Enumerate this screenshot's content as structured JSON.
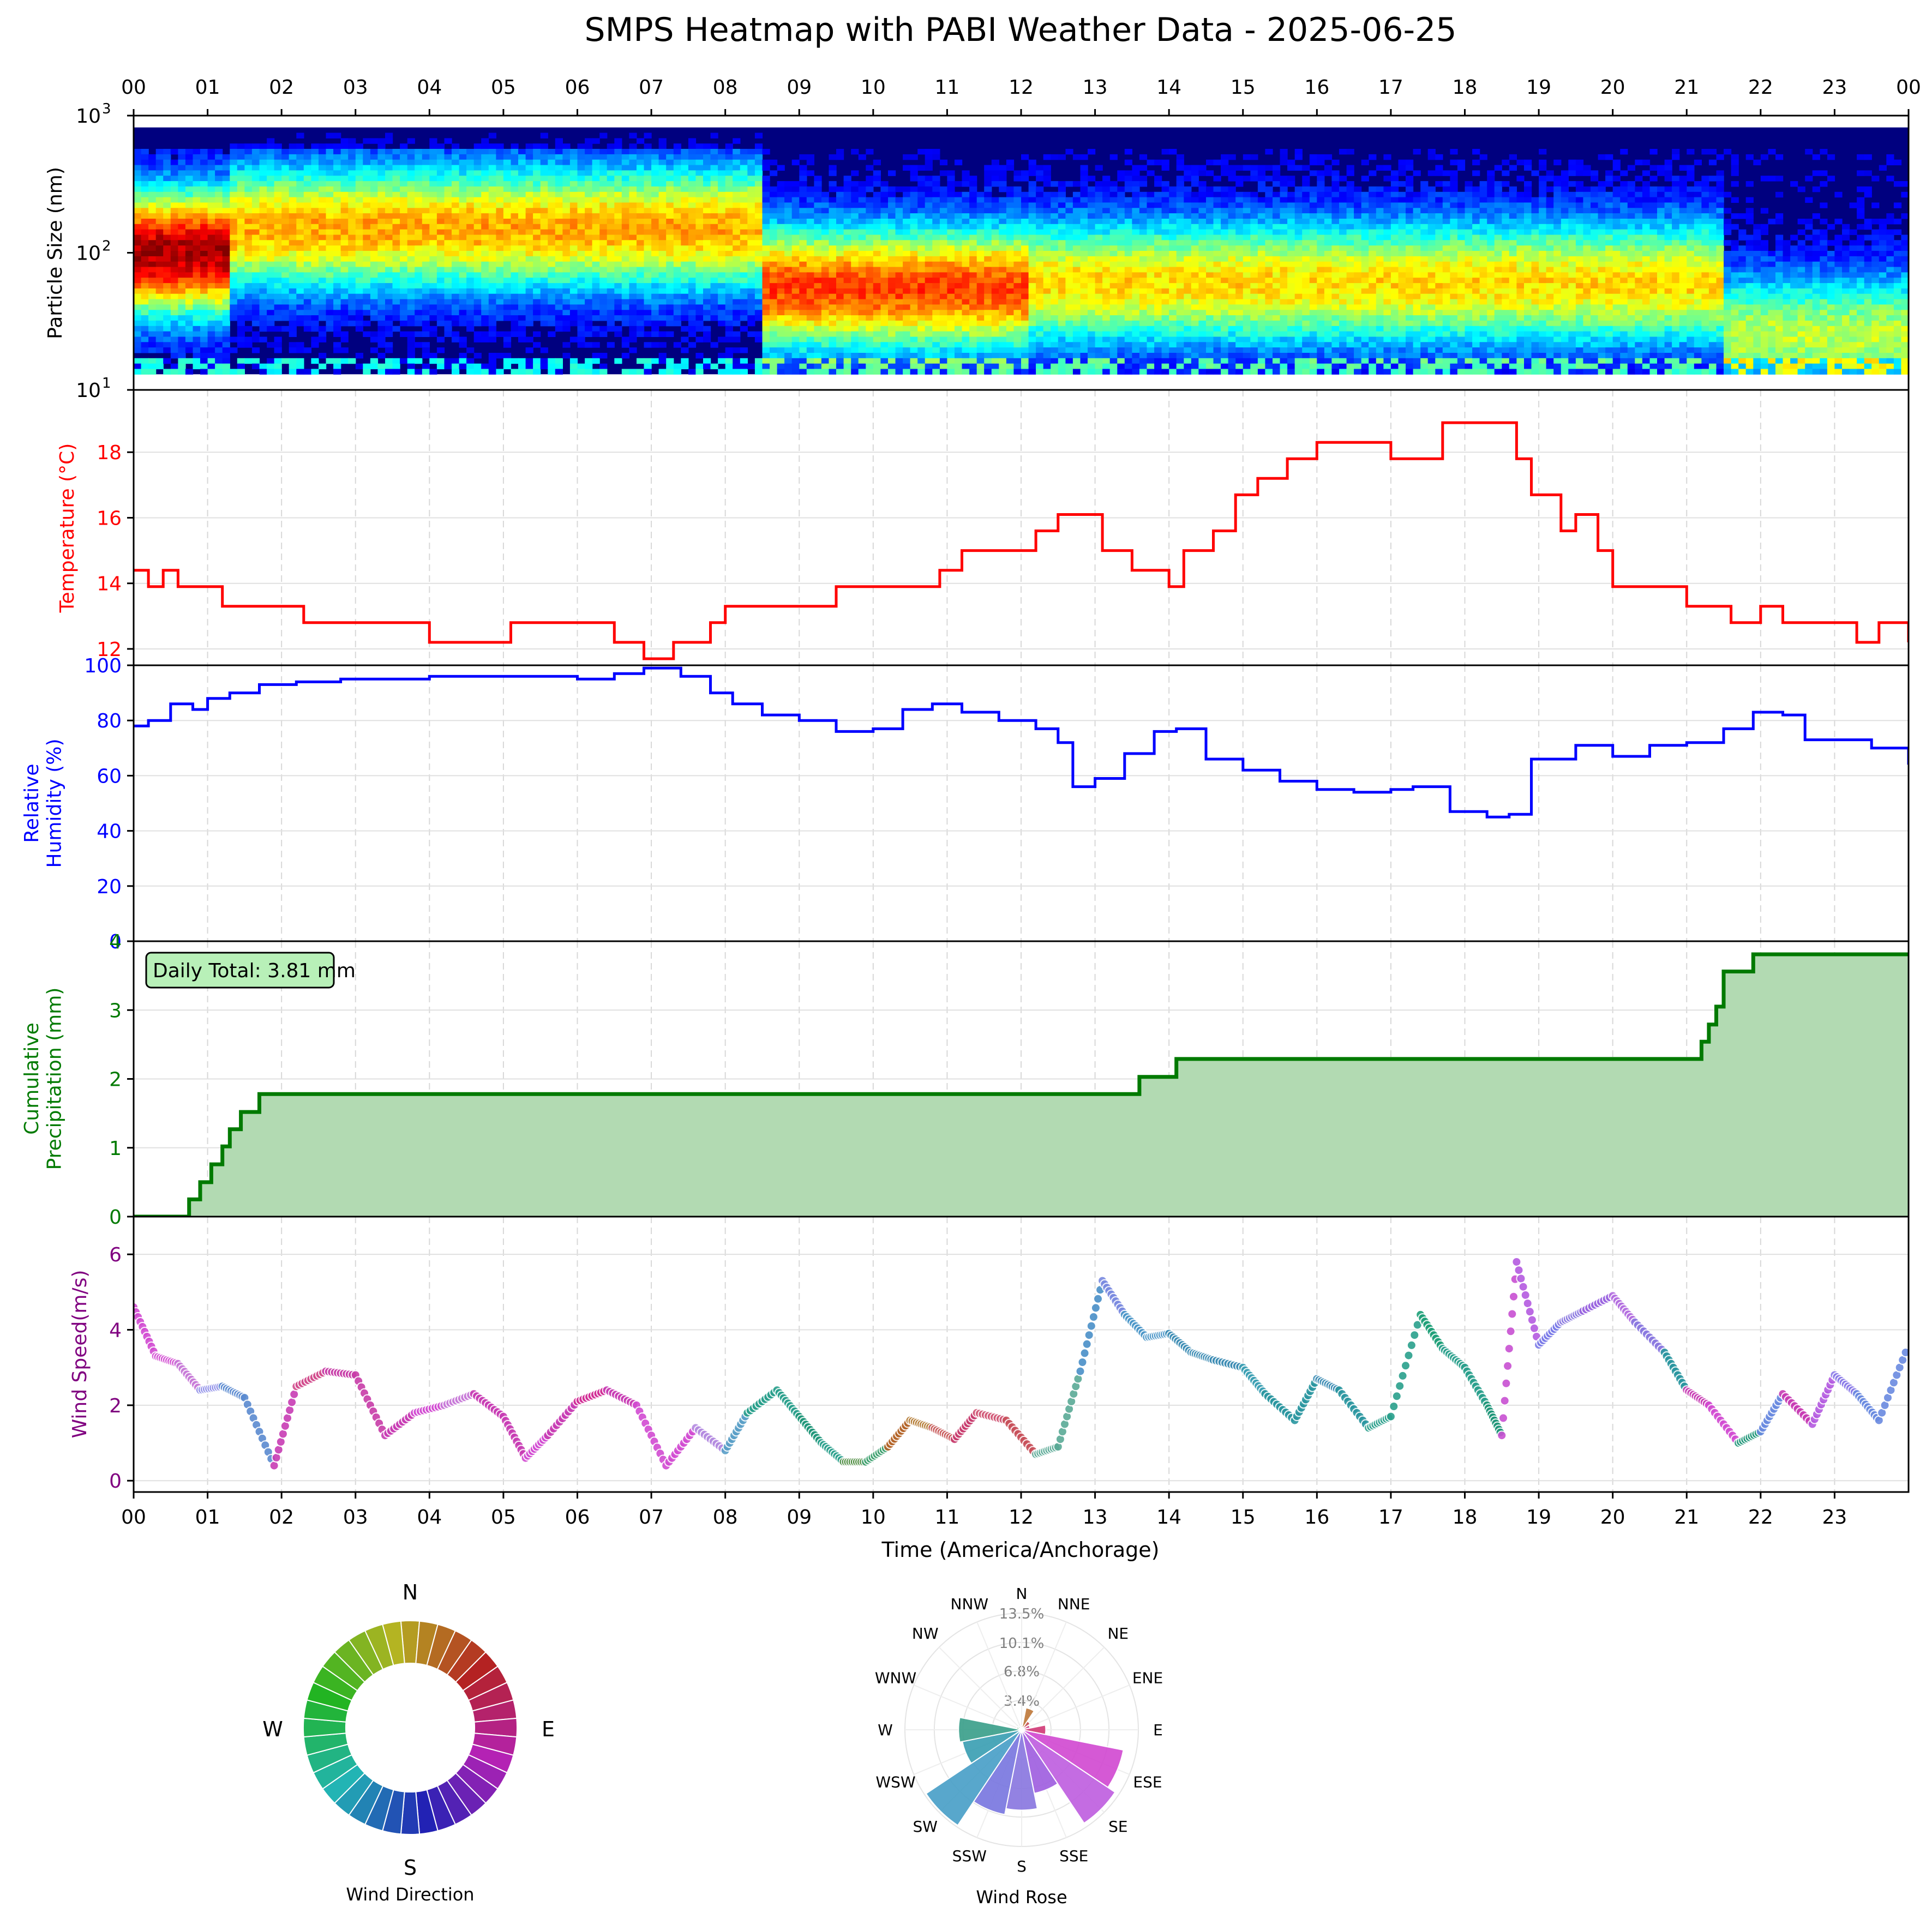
{
  "title": "SMPS Heatmap with PABI Weather Data - 2025-06-25",
  "colors": {
    "temperature": "#ff0000",
    "humidity": "#0000ff",
    "precipitation": "#007a00",
    "precip_fill": "#b2dab2",
    "precip_box": "#b8f0b8",
    "wind_label": "#800080",
    "heat_background": "#00007f",
    "grid": "#e0e0e0"
  },
  "chart_data": [
    {
      "type": "heatmap",
      "ylabel": "Particle Size (nm)",
      "yscale": "log",
      "ylim": [
        10,
        1000
      ],
      "y_ticks": [
        "10",
        "10",
        "10"
      ],
      "y_tick_exponents": [
        "1",
        "2",
        "3"
      ],
      "top_x_ticks": [
        "00",
        "01",
        "02",
        "03",
        "04",
        "05",
        "06",
        "07",
        "08",
        "09",
        "10",
        "11",
        "12",
        "13",
        "14",
        "15",
        "16",
        "17",
        "18",
        "19",
        "20",
        "21",
        "22",
        "23",
        "00"
      ],
      "colormap": "jet",
      "x_range_hours": [
        0,
        24
      ],
      "bands_hours": [
        {
          "from": 0.0,
          "to": 1.3,
          "center_nm": 100,
          "level": 0.9
        },
        {
          "from": 1.3,
          "to": 8.5,
          "center_nm": 150,
          "level": 0.65
        },
        {
          "from": 8.5,
          "to": 12.1,
          "center_nm": 55,
          "level": 0.75
        },
        {
          "from": 12.1,
          "to": 21.5,
          "center_nm": 60,
          "level": 0.6
        },
        {
          "from": 21.5,
          "to": 24.0,
          "center_nm": 25,
          "level": 0.5
        }
      ]
    },
    {
      "type": "line",
      "ylabel": "Temperature (°C)",
      "ylim": [
        11.5,
        19.9
      ],
      "y_ticks": [
        "12",
        "14",
        "16",
        "18"
      ],
      "x_hours": [
        0.0,
        0.2,
        0.4,
        0.6,
        1.2,
        2.0,
        2.3,
        4.0,
        5.1,
        6.5,
        6.9,
        7.3,
        7.8,
        8.0,
        9.5,
        10.6,
        10.9,
        11.2,
        11.5,
        12.2,
        12.5,
        13.1,
        13.5,
        14.0,
        14.2,
        14.6,
        14.9,
        15.2,
        15.6,
        16.0,
        16.3,
        17.0,
        17.7,
        17.9,
        18.5,
        18.7,
        18.9,
        19.3,
        19.5,
        19.8,
        20.0,
        20.5,
        21.0,
        21.3,
        21.6,
        22.0,
        22.3,
        22.8,
        23.3,
        23.6,
        24.0
      ],
      "values": [
        14.4,
        13.9,
        14.4,
        13.9,
        13.3,
        13.3,
        12.8,
        12.2,
        12.8,
        12.2,
        11.7,
        12.2,
        12.8,
        13.3,
        13.9,
        13.9,
        14.4,
        15.0,
        15.0,
        15.6,
        16.1,
        15.0,
        14.4,
        13.9,
        15.0,
        15.6,
        16.7,
        17.2,
        17.8,
        18.3,
        18.3,
        17.8,
        18.9,
        18.9,
        18.9,
        17.8,
        16.7,
        15.6,
        16.1,
        15.0,
        13.9,
        13.9,
        13.3,
        13.3,
        12.8,
        13.3,
        12.8,
        12.8,
        12.2,
        12.8,
        12.2
      ]
    },
    {
      "type": "line",
      "ylabel": "Relative Humidity (%)",
      "ylim": [
        0,
        100
      ],
      "y_ticks": [
        "0",
        "20",
        "40",
        "60",
        "80",
        "100"
      ],
      "x_hours": [
        0.0,
        0.2,
        0.5,
        0.8,
        1.0,
        1.3,
        1.7,
        2.2,
        2.8,
        3.5,
        4.0,
        5.0,
        6.0,
        6.5,
        6.9,
        7.4,
        7.8,
        8.1,
        8.5,
        9.0,
        9.5,
        10.0,
        10.4,
        10.8,
        11.2,
        11.7,
        12.2,
        12.5,
        12.7,
        13.0,
        13.4,
        13.8,
        14.1,
        14.5,
        15.0,
        15.5,
        16.0,
        16.5,
        17.0,
        17.3,
        17.8,
        18.3,
        18.6,
        18.9,
        19.5,
        20.0,
        20.5,
        21.0,
        21.5,
        21.9,
        22.3,
        22.6,
        23.0,
        23.5,
        24.0
      ],
      "values": [
        78,
        80,
        86,
        84,
        88,
        90,
        93,
        94,
        95,
        95,
        96,
        96,
        95,
        97,
        99,
        96,
        90,
        86,
        82,
        80,
        76,
        77,
        84,
        86,
        83,
        80,
        77,
        72,
        56,
        59,
        68,
        76,
        77,
        66,
        62,
        58,
        55,
        54,
        55,
        56,
        47,
        45,
        46,
        66,
        71,
        67,
        71,
        72,
        77,
        83,
        82,
        73,
        73,
        70,
        64
      ]
    },
    {
      "type": "area",
      "ylabel": "Cumulative Precipitation (mm)",
      "ylim": [
        0,
        4
      ],
      "y_ticks": [
        "0",
        "1",
        "2",
        "3",
        "4"
      ],
      "annotation": "Daily Total: 3.81 mm",
      "x_hours": [
        0.0,
        0.75,
        0.9,
        1.05,
        1.2,
        1.3,
        1.45,
        1.6,
        1.7,
        13.6,
        14.1,
        21.2,
        21.3,
        21.4,
        21.5,
        21.9,
        24.0
      ],
      "values": [
        0.0,
        0.25,
        0.5,
        0.76,
        1.02,
        1.27,
        1.52,
        1.52,
        1.78,
        2.03,
        2.29,
        2.54,
        2.79,
        3.05,
        3.56,
        3.81,
        3.81
      ]
    },
    {
      "type": "scatter",
      "ylabel": "Wind Speed(m/s)",
      "xlabel": "Time (America/Anchorage)",
      "ylim": [
        -0.3,
        7.0
      ],
      "y_ticks": [
        "0",
        "2",
        "4",
        "6"
      ],
      "x_ticks": [
        "00",
        "01",
        "02",
        "03",
        "04",
        "05",
        "06",
        "07",
        "08",
        "09",
        "10",
        "11",
        "12",
        "13",
        "14",
        "15",
        "16",
        "17",
        "18",
        "19",
        "20",
        "21",
        "22",
        "23"
      ],
      "x_hours": [
        0.0,
        0.3,
        0.6,
        0.9,
        1.2,
        1.5,
        1.9,
        2.2,
        2.6,
        3.0,
        3.4,
        3.8,
        4.2,
        4.6,
        5.0,
        5.3,
        5.6,
        6.0,
        6.4,
        6.8,
        7.2,
        7.6,
        8.0,
        8.3,
        8.7,
        9.0,
        9.3,
        9.6,
        9.9,
        10.2,
        10.5,
        10.8,
        11.1,
        11.4,
        11.8,
        12.2,
        12.5,
        12.8,
        13.1,
        13.4,
        13.7,
        14.0,
        14.3,
        14.6,
        15.0,
        15.3,
        15.7,
        16.0,
        16.3,
        16.7,
        17.0,
        17.4,
        17.7,
        18.0,
        18.3,
        18.5,
        18.7,
        19.0,
        19.3,
        19.6,
        20.0,
        20.3,
        20.7,
        21.0,
        21.3,
        21.7,
        22.0,
        22.3,
        22.7,
        23.0,
        23.3,
        23.6,
        24.0
      ],
      "values": [
        4.6,
        3.3,
        3.1,
        2.4,
        2.5,
        2.2,
        0.4,
        2.5,
        2.9,
        2.8,
        1.2,
        1.8,
        2.0,
        2.3,
        1.7,
        0.6,
        1.2,
        2.1,
        2.4,
        2.0,
        0.4,
        1.4,
        0.8,
        1.8,
        2.4,
        1.7,
        1.0,
        0.5,
        0.5,
        0.9,
        1.6,
        1.4,
        1.1,
        1.8,
        1.6,
        0.7,
        0.9,
        2.9,
        5.3,
        4.4,
        3.8,
        3.9,
        3.4,
        3.2,
        3.0,
        2.3,
        1.6,
        2.7,
        2.4,
        1.4,
        1.7,
        4.4,
        3.5,
        3.0,
        2.0,
        1.2,
        5.8,
        3.6,
        4.2,
        4.5,
        4.9,
        4.2,
        3.4,
        2.4,
        2.0,
        1.0,
        1.3,
        2.3,
        1.5,
        2.8,
        2.3,
        1.6,
        3.6
      ],
      "colors": [
        "#d24bd2",
        "#d24bd2",
        "#c87ad8",
        "#8a8ae8",
        "#5a8ad0",
        "#5a8ad0",
        "#c83cb4",
        "#d24b8c",
        "#c83ca8",
        "#c83ca8",
        "#c83cb4",
        "#d24bd2",
        "#c87ad8",
        "#c83cb4",
        "#c83cb4",
        "#d24bd2",
        "#c83cb4",
        "#d22d96",
        "#c83cb4",
        "#d24bd2",
        "#d24bd2",
        "#b48ae0",
        "#5aa0c8",
        "#2aa08c",
        "#2aa08c",
        "#1e9678",
        "#2aa08c",
        "#4a8a3c",
        "#3ca06e",
        "#b46428",
        "#b47a32",
        "#c85a5a",
        "#c83c6e",
        "#d25a78",
        "#c8505a",
        "#5aaa96",
        "#5aaa96",
        "#4a90c8",
        "#7a8ae0",
        "#4a96c8",
        "#4a96c8",
        "#3c8cb4",
        "#3c8cb4",
        "#3c8cb4",
        "#3ca0b4",
        "#2a96a0",
        "#2a96a0",
        "#3c8cb4",
        "#2a96a0",
        "#2aa08c",
        "#2aa08c",
        "#1ea078",
        "#2aa08c",
        "#2aa08c",
        "#1e9678",
        "#c850d2",
        "#b45ae0",
        "#7a7ae8",
        "#8a78e0",
        "#9a64e0",
        "#b46ee0",
        "#8a78e0",
        "#2a96a0",
        "#c83cb4",
        "#d24bd2",
        "#1e9678",
        "#6a8ae0",
        "#c83cb4",
        "#b45ae0",
        "#8a7ae8",
        "#6a8ae0",
        "#6a8ae0",
        "#8a8ae8"
      ]
    },
    {
      "type": "bar",
      "title": "Wind Direction",
      "categories": [
        "N",
        "E",
        "S",
        "W"
      ],
      "values": [
        1,
        1,
        1,
        1
      ]
    },
    {
      "type": "bar",
      "title": "Wind Rose",
      "categories": [
        "N",
        "NNE",
        "NE",
        "ENE",
        "E",
        "ESE",
        "SE",
        "SSE",
        "S",
        "SSW",
        "SW",
        "WSW",
        "W",
        "WNW",
        "NW",
        "NNW"
      ],
      "values": [
        0.5,
        2.6,
        1.2,
        1.0,
        2.8,
        12.0,
        13.0,
        7.5,
        9.3,
        10.0,
        13.3,
        7.0,
        7.3,
        0.6,
        0.5,
        0.4
      ],
      "colors": [
        "#8a7a14",
        "#c07a3c",
        "#c85050",
        "#d2468c",
        "#d23c78",
        "#d24bd2",
        "#c060e0",
        "#a060e0",
        "#8a78e0",
        "#7a78e0",
        "#4aa0c8",
        "#3ca0b4",
        "#3ca08c",
        "#5a9e5a",
        "#5a9e5a",
        "#8a7a14"
      ],
      "ring_labels": [
        "3.4%",
        "6.8%",
        "10.1%",
        "13.5%"
      ],
      "ring_values": [
        3.4,
        6.8,
        10.1,
        13.5
      ]
    }
  ]
}
